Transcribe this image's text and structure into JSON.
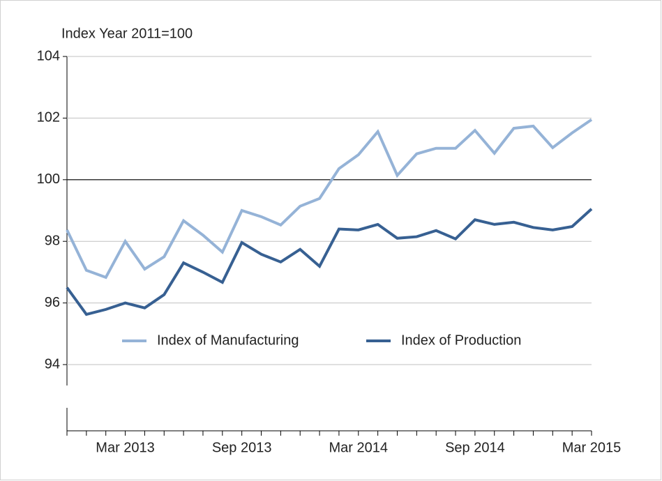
{
  "chart_data": {
    "type": "line",
    "y_axis_label": "Index Year 2011=100",
    "categories": [
      null,
      null,
      null,
      "Mar 2013",
      null,
      null,
      null,
      null,
      null,
      "Sep 2013",
      null,
      null,
      null,
      null,
      null,
      "Mar 2014",
      null,
      null,
      null,
      null,
      null,
      "Sep 2014",
      null,
      null,
      null,
      null,
      null,
      "Mar 2015"
    ],
    "series": [
      {
        "name": "Index of Manufacturing",
        "color": "#95b3d7",
        "values": [
          98.37,
          97.06,
          96.83,
          98.0,
          97.1,
          97.5,
          98.67,
          98.2,
          97.65,
          99.0,
          98.8,
          98.53,
          99.14,
          99.39,
          100.36,
          100.81,
          101.56,
          100.14,
          100.84,
          101.02,
          101.02,
          101.6,
          100.86,
          101.67,
          101.74,
          101.04,
          101.52,
          101.95
        ]
      },
      {
        "name": "Index of Production",
        "color": "#376092",
        "values": [
          96.5,
          95.63,
          95.79,
          96.0,
          95.84,
          96.27,
          97.3,
          97.0,
          96.67,
          97.96,
          97.58,
          97.33,
          97.74,
          97.19,
          98.4,
          98.37,
          98.55,
          98.1,
          98.15,
          98.35,
          98.08,
          98.7,
          98.55,
          98.62,
          98.45,
          98.37,
          98.48,
          99.05
        ]
      }
    ],
    "ylim": [
      94,
      104
    ],
    "yticks": [
      94,
      96,
      98,
      100,
      102,
      104
    ],
    "grid": true,
    "reference_line": 100,
    "legend": "inside-bottom"
  }
}
